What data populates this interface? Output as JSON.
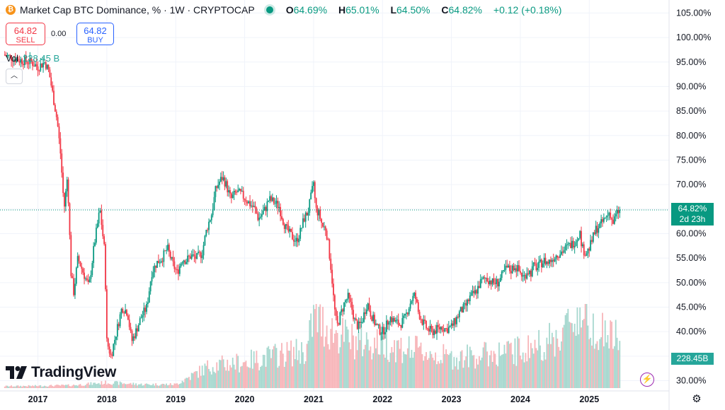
{
  "header": {
    "symbol_icon": "bitcoin-icon",
    "title": "Market Cap BTC Dominance, % · 1W · CRYPTOCAP",
    "status_color": "#089981",
    "ohlc": {
      "o_label": "O",
      "o": "64.69%",
      "h_label": "H",
      "h": "65.01%",
      "l_label": "L",
      "l": "64.50%",
      "c_label": "C",
      "c": "64.82%",
      "change": "+0.12 (+0.18%)"
    }
  },
  "trade": {
    "sell_price": "64.82",
    "sell_label": "SELL",
    "spread": "0.00",
    "buy_price": "64.82",
    "buy_label": "BUY"
  },
  "volume": {
    "label": "Vol",
    "value": "228.45 B"
  },
  "branding": {
    "logo_text": "TradingView"
  },
  "price_axis": {
    "last_price": "64.82%",
    "countdown": "2d 23h",
    "volume_tag": "228.45B"
  },
  "icons": {
    "collapse": "chevron-up-icon",
    "replay": "lightning-icon",
    "settings": "gear-icon"
  },
  "colors": {
    "up": "#089981",
    "down": "#f23645",
    "up_volume": "#a7d8cf",
    "down_volume": "#f7b5b9",
    "grid": "#f0f3fa"
  },
  "chart_data": {
    "type": "candlestick",
    "interval": "1W",
    "ylabel": "",
    "ylim": [
      29.5,
      106.5
    ],
    "y_ticks": [
      "105.00%",
      "100.00%",
      "95.00%",
      "90.00%",
      "85.00%",
      "80.00%",
      "75.00%",
      "70.00%",
      "65.00%",
      "60.00%",
      "55.00%",
      "50.00%",
      "45.00%",
      "40.00%",
      "35.00%",
      "30.00%"
    ],
    "y_tick_values": [
      105,
      100,
      95,
      90,
      85,
      80,
      75,
      70,
      65,
      60,
      55,
      50,
      45,
      40,
      35,
      30
    ],
    "x_ticks": [
      "2017",
      "2018",
      "2019",
      "2020",
      "2021",
      "2022",
      "2023",
      "2024",
      "2025"
    ],
    "x_tick_years": [
      2017,
      2018,
      2019,
      2020,
      2021,
      2022,
      2023,
      2024,
      2025
    ],
    "x_range": [
      2016.45,
      2025.85
    ],
    "last_close": 64.82,
    "close_series": [
      [
        2016.5,
        96.5
      ],
      [
        2016.7,
        95.5
      ],
      [
        2016.9,
        95.0
      ],
      [
        2017.0,
        94.0
      ],
      [
        2017.1,
        95.0
      ],
      [
        2017.16,
        93.0
      ],
      [
        2017.22,
        88.0
      ],
      [
        2017.28,
        83.0
      ],
      [
        2017.33,
        76.0
      ],
      [
        2017.38,
        65.0
      ],
      [
        2017.43,
        72.0
      ],
      [
        2017.48,
        52.0
      ],
      [
        2017.52,
        48.0
      ],
      [
        2017.58,
        55.0
      ],
      [
        2017.66,
        52.0
      ],
      [
        2017.74,
        49.0
      ],
      [
        2017.82,
        58.0
      ],
      [
        2017.9,
        65.0
      ],
      [
        2017.97,
        56.0
      ],
      [
        2018.0,
        38.0
      ],
      [
        2018.06,
        35.0
      ],
      [
        2018.14,
        40.0
      ],
      [
        2018.22,
        45.0
      ],
      [
        2018.3,
        44.0
      ],
      [
        2018.36,
        38.0
      ],
      [
        2018.42,
        40.0
      ],
      [
        2018.5,
        43.0
      ],
      [
        2018.58,
        45.0
      ],
      [
        2018.65,
        52.0
      ],
      [
        2018.72,
        54.0
      ],
      [
        2018.8,
        55.0
      ],
      [
        2018.88,
        57.0
      ],
      [
        2018.95,
        54.0
      ],
      [
        2019.02,
        52.0
      ],
      [
        2019.1,
        55.0
      ],
      [
        2019.15,
        54.5
      ],
      [
        2019.22,
        55.5
      ],
      [
        2019.3,
        55.0
      ],
      [
        2019.38,
        56.0
      ],
      [
        2019.45,
        61.0
      ],
      [
        2019.52,
        64.0
      ],
      [
        2019.58,
        69.0
      ],
      [
        2019.63,
        70.5
      ],
      [
        2019.68,
        71.5
      ],
      [
        2019.73,
        70.0
      ],
      [
        2019.8,
        67.0
      ],
      [
        2019.88,
        68.5
      ],
      [
        2019.95,
        68.0
      ],
      [
        2020.02,
        67.0
      ],
      [
        2020.08,
        66.0
      ],
      [
        2020.15,
        65.0
      ],
      [
        2020.2,
        63.0
      ],
      [
        2020.25,
        64.0
      ],
      [
        2020.3,
        65.0
      ],
      [
        2020.35,
        67.0
      ],
      [
        2020.42,
        66.5
      ],
      [
        2020.5,
        65.5
      ],
      [
        2020.55,
        63.0
      ],
      [
        2020.6,
        61.0
      ],
      [
        2020.68,
        59.5
      ],
      [
        2020.75,
        58.5
      ],
      [
        2020.8,
        60.0
      ],
      [
        2020.86,
        63.0
      ],
      [
        2020.92,
        64.5
      ],
      [
        2020.97,
        68.0
      ],
      [
        2021.0,
        70.5
      ],
      [
        2021.03,
        65.0
      ],
      [
        2021.08,
        64.0
      ],
      [
        2021.13,
        61.5
      ],
      [
        2021.18,
        61.0
      ],
      [
        2021.22,
        57.0
      ],
      [
        2021.26,
        52.0
      ],
      [
        2021.3,
        45.0
      ],
      [
        2021.34,
        41.0
      ],
      [
        2021.38,
        43.0
      ],
      [
        2021.45,
        46.0
      ],
      [
        2021.5,
        47.0
      ],
      [
        2021.55,
        45.0
      ],
      [
        2021.6,
        42.0
      ],
      [
        2021.65,
        41.0
      ],
      [
        2021.7,
        42.0
      ],
      [
        2021.78,
        46.0
      ],
      [
        2021.82,
        44.0
      ],
      [
        2021.88,
        42.0
      ],
      [
        2021.94,
        40.5
      ],
      [
        2022.0,
        40.0
      ],
      [
        2022.05,
        41.0
      ],
      [
        2022.1,
        43.0
      ],
      [
        2022.18,
        42.0
      ],
      [
        2022.25,
        41.5
      ],
      [
        2022.32,
        42.5
      ],
      [
        2022.38,
        45.0
      ],
      [
        2022.42,
        46.5
      ],
      [
        2022.47,
        47.5
      ],
      [
        2022.52,
        44.0
      ],
      [
        2022.58,
        42.0
      ],
      [
        2022.65,
        40.5
      ],
      [
        2022.72,
        40.0
      ],
      [
        2022.8,
        40.5
      ],
      [
        2022.86,
        41.0
      ],
      [
        2022.92,
        40.5
      ],
      [
        2023.0,
        41.0
      ],
      [
        2023.05,
        42.0
      ],
      [
        2023.12,
        44.0
      ],
      [
        2023.2,
        45.0
      ],
      [
        2023.27,
        47.0
      ],
      [
        2023.35,
        48.0
      ],
      [
        2023.42,
        50.0
      ],
      [
        2023.5,
        51.0
      ],
      [
        2023.55,
        50.5
      ],
      [
        2023.6,
        50.0
      ],
      [
        2023.67,
        50.0
      ],
      [
        2023.72,
        51.0
      ],
      [
        2023.8,
        53.0
      ],
      [
        2023.86,
        52.5
      ],
      [
        2023.92,
        53.5
      ],
      [
        2024.0,
        52.0
      ],
      [
        2024.05,
        51.0
      ],
      [
        2024.1,
        52.5
      ],
      [
        2024.15,
        52.0
      ],
      [
        2024.2,
        53.5
      ],
      [
        2024.25,
        53.0
      ],
      [
        2024.3,
        54.0
      ],
      [
        2024.35,
        54.5
      ],
      [
        2024.4,
        54.0
      ],
      [
        2024.47,
        55.0
      ],
      [
        2024.55,
        56.0
      ],
      [
        2024.62,
        56.5
      ],
      [
        2024.7,
        57.5
      ],
      [
        2024.76,
        58.0
      ],
      [
        2024.82,
        59.0
      ],
      [
        2024.86,
        60.5
      ],
      [
        2024.9,
        57.0
      ],
      [
        2024.95,
        56.0
      ],
      [
        2025.0,
        57.0
      ],
      [
        2025.05,
        59.0
      ],
      [
        2025.1,
        61.0
      ],
      [
        2025.15,
        61.5
      ],
      [
        2025.2,
        62.5
      ],
      [
        2025.25,
        63.5
      ],
      [
        2025.3,
        64.5
      ],
      [
        2025.34,
        62.0
      ],
      [
        2025.38,
        63.5
      ],
      [
        2025.42,
        64.5
      ],
      [
        2025.46,
        64.82
      ]
    ],
    "volume_series": [
      [
        2016.5,
        1.0
      ],
      [
        2017.0,
        1.2
      ],
      [
        2017.5,
        1.5
      ],
      [
        2018.0,
        3.0
      ],
      [
        2018.5,
        2.0
      ],
      [
        2019.0,
        2.0
      ],
      [
        2019.5,
        12.0
      ],
      [
        2020.0,
        14.0
      ],
      [
        2020.5,
        18.0
      ],
      [
        2020.9,
        20.0
      ],
      [
        2021.0,
        38.0
      ],
      [
        2021.3,
        30.0
      ],
      [
        2021.6,
        25.0
      ],
      [
        2022.0,
        24.0
      ],
      [
        2022.5,
        20.0
      ],
      [
        2023.0,
        16.0
      ],
      [
        2023.5,
        18.0
      ],
      [
        2024.0,
        20.0
      ],
      [
        2024.5,
        26.0
      ],
      [
        2024.85,
        40.0
      ],
      [
        2025.0,
        36.0
      ],
      [
        2025.2,
        30.0
      ],
      [
        2025.46,
        25.0
      ]
    ]
  }
}
